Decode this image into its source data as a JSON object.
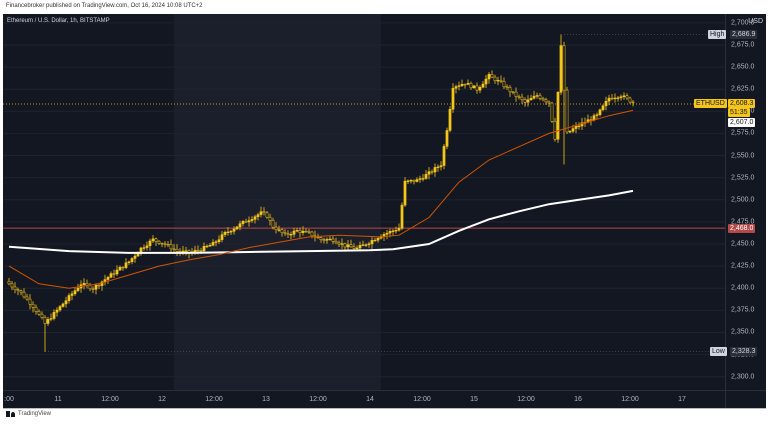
{
  "publisher_line": "Financebroker published on TradingView.com, Oct 16, 2024 10:08 UTC+2",
  "symbol_legend": "Ethereum / U.S. Dollar, 1h, BITSTAMP",
  "currency": "USD",
  "footer_brand": "TradingView",
  "colors": {
    "background": "#131722",
    "candle": "#f5c518",
    "ma_fast": "#d35400",
    "ma_slow": "#ffffff",
    "price_line": "#f5c518",
    "red_line": "#b34a4a"
  },
  "price_axis": [
    "2,700.0",
    "2,675.0",
    "2,650.0",
    "2,625.0",
    "2,600.0",
    "2,575.0",
    "2,550.0",
    "2,525.0",
    "2,500.0",
    "2,475.0",
    "2,450.0",
    "2,425.0",
    "2,400.0",
    "2,375.0",
    "2,350.0",
    "2,325.0",
    "2,300.0"
  ],
  "time_axis": [
    ":00",
    "11",
    "12:00",
    "12",
    "12:00",
    "13",
    "12:00",
    "14",
    "12:00",
    "15",
    "12:00",
    "16",
    "12:00",
    "17"
  ],
  "labels": {
    "high_tag": "High",
    "high_value": "2,686.9",
    "low_tag": "Low",
    "low_value": "2,328.3",
    "symbol_tag": "ETHUSD",
    "last_price": "2,608.3",
    "countdown": "51:35",
    "ma_value": "2,607.0",
    "line_value": "2,468.0"
  },
  "chart_data": {
    "type": "candlestick",
    "title": "Ethereum / U.S. Dollar, 1h, BITSTAMP",
    "ylabel": "USD",
    "ylim": [
      2285,
      2710
    ],
    "x_ticks": [
      "11",
      "12",
      "13",
      "14",
      "15",
      "16",
      "17"
    ],
    "high": 2686.9,
    "low": 2328.3,
    "last": 2608.3,
    "horizontal_line": 2468.0,
    "close_path": [
      [
        0,
        2405
      ],
      [
        4,
        2395
      ],
      [
        8,
        2380
      ],
      [
        12,
        2360
      ],
      [
        16,
        2375
      ],
      [
        20,
        2390
      ],
      [
        24,
        2405
      ],
      [
        28,
        2400
      ],
      [
        32,
        2410
      ],
      [
        36,
        2420
      ],
      [
        40,
        2430
      ],
      [
        44,
        2445
      ],
      [
        48,
        2455
      ],
      [
        52,
        2450
      ],
      [
        56,
        2442
      ],
      [
        60,
        2440
      ],
      [
        64,
        2444
      ],
      [
        68,
        2450
      ],
      [
        72,
        2462
      ],
      [
        76,
        2470
      ],
      [
        80,
        2478
      ],
      [
        84,
        2485
      ],
      [
        86,
        2482
      ],
      [
        88,
        2470
      ],
      [
        92,
        2460
      ],
      [
        96,
        2465
      ],
      [
        100,
        2462
      ],
      [
        104,
        2455
      ],
      [
        108,
        2455
      ],
      [
        112,
        2448
      ],
      [
        116,
        2445
      ],
      [
        120,
        2452
      ],
      [
        124,
        2460
      ],
      [
        128,
        2465
      ],
      [
        130,
        2468
      ],
      [
        132,
        2520
      ],
      [
        136,
        2522
      ],
      [
        140,
        2530
      ],
      [
        144,
        2540
      ],
      [
        146,
        2580
      ],
      [
        148,
        2628
      ],
      [
        152,
        2632
      ],
      [
        156,
        2625
      ],
      [
        160,
        2640
      ],
      [
        164,
        2632
      ],
      [
        168,
        2620
      ],
      [
        172,
        2610
      ],
      [
        176,
        2618
      ],
      [
        180,
        2610
      ],
      [
        182,
        2570
      ],
      [
        184,
        2673
      ],
      [
        186,
        2575
      ],
      [
        188,
        2580
      ],
      [
        192,
        2588
      ],
      [
        196,
        2595
      ],
      [
        200,
        2615
      ],
      [
        204,
        2618
      ],
      [
        208,
        2610
      ]
    ],
    "ma_fast": [
      [
        0,
        2425
      ],
      [
        10,
        2405
      ],
      [
        20,
        2400
      ],
      [
        30,
        2405
      ],
      [
        40,
        2415
      ],
      [
        50,
        2425
      ],
      [
        60,
        2432
      ],
      [
        70,
        2438
      ],
      [
        80,
        2446
      ],
      [
        90,
        2452
      ],
      [
        100,
        2458
      ],
      [
        110,
        2460
      ],
      [
        124,
        2458
      ],
      [
        130,
        2460
      ],
      [
        140,
        2480
      ],
      [
        150,
        2520
      ],
      [
        160,
        2545
      ],
      [
        170,
        2560
      ],
      [
        180,
        2575
      ],
      [
        190,
        2585
      ],
      [
        200,
        2595
      ],
      [
        208,
        2601
      ]
    ],
    "ma_slow": [
      [
        0,
        2447
      ],
      [
        20,
        2442
      ],
      [
        40,
        2440
      ],
      [
        60,
        2440
      ],
      [
        80,
        2441
      ],
      [
        100,
        2442
      ],
      [
        120,
        2443
      ],
      [
        128,
        2444
      ],
      [
        140,
        2450
      ],
      [
        150,
        2465
      ],
      [
        160,
        2478
      ],
      [
        170,
        2487
      ],
      [
        180,
        2495
      ],
      [
        190,
        2500
      ],
      [
        200,
        2505
      ],
      [
        208,
        2510
      ]
    ]
  }
}
